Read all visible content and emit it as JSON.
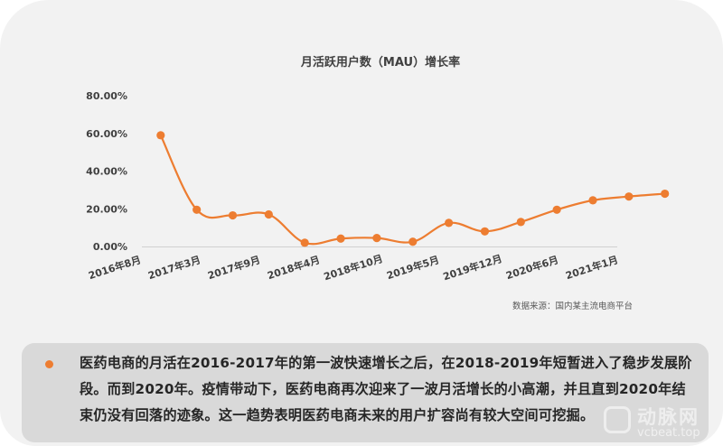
{
  "chart_data": {
    "type": "line",
    "title": "月活跃用户数（MAU）增长率",
    "x_tick_labels": [
      "2016年8月",
      "2017年3月",
      "2017年9月",
      "2018年4月",
      "2018年10月",
      "2019年5月",
      "2019年12月",
      "2020年6月",
      "2021年1月"
    ],
    "y_tick_labels": [
      "0.00%",
      "20.00%",
      "40.00%",
      "60.00%",
      "80.00%"
    ],
    "ylim": [
      0,
      80
    ],
    "series": [
      {
        "color": "#ed7d31",
        "points": [
          {
            "x": "2017-01",
            "y": 59
          },
          {
            "x": "2017-05",
            "y": 19.5
          },
          {
            "x": "2017-09",
            "y": 16.5
          },
          {
            "x": "2018-01",
            "y": 17
          },
          {
            "x": "2018-05",
            "y": 2
          },
          {
            "x": "2018-09",
            "y": 4.2
          },
          {
            "x": "2019-01",
            "y": 4.5
          },
          {
            "x": "2019-05",
            "y": 2.5
          },
          {
            "x": "2019-09",
            "y": 12.5
          },
          {
            "x": "2020-01",
            "y": 8
          },
          {
            "x": "2020-05",
            "y": 13
          },
          {
            "x": "2020-09",
            "y": 19.5
          },
          {
            "x": "2021-01",
            "y": 24.5
          },
          {
            "x": "2021-05",
            "y": 26.5
          },
          {
            "x": "2021-09",
            "y": 28
          }
        ]
      }
    ],
    "grid": false,
    "legend": "none",
    "source_note": "数据来源：国内某主流电商平台"
  },
  "note": {
    "text": "医药电商的月活在2016-2017年的第一波快速增长之后，在2018-2019年短暂进入了稳步发展阶段。而到2020年。疫情带动下，医药电商再次迎来了一波月活增长的小高潮，并且直到2020年结束仍没有回落的迹象。这一趋势表明医药电商未来的用户扩容尚有较大空间可挖掘。"
  },
  "watermark": {
    "brand_cn": "动脉网",
    "brand_en": "vcbeat.top"
  },
  "colors": {
    "line": "#ed7d31",
    "note_bullet": "#ed7d31",
    "card_bg": "#f2f2f2",
    "note_bg": "#d9d9d9"
  }
}
